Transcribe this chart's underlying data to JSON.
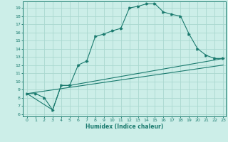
{
  "xlabel": "Humidex (Indice chaleur)",
  "bg_color": "#cceee8",
  "line_color": "#1a7a6e",
  "grid_color": "#aad8d0",
  "xlim": [
    -0.5,
    23.3
  ],
  "ylim": [
    5.7,
    19.8
  ],
  "xticks": [
    0,
    1,
    2,
    3,
    4,
    5,
    6,
    7,
    8,
    9,
    10,
    11,
    12,
    13,
    14,
    15,
    16,
    17,
    18,
    19,
    20,
    21,
    22,
    23
  ],
  "yticks": [
    6,
    7,
    8,
    9,
    10,
    11,
    12,
    13,
    14,
    15,
    16,
    17,
    18,
    19
  ],
  "line1_x": [
    0,
    1,
    2,
    3,
    4,
    5,
    6,
    7,
    8,
    9,
    10,
    11,
    12,
    13,
    14,
    15,
    16,
    17,
    18,
    19,
    20,
    21,
    22,
    23
  ],
  "line1_y": [
    8.5,
    8.5,
    8.0,
    6.5,
    9.5,
    9.5,
    12.0,
    12.5,
    15.5,
    15.8,
    16.2,
    16.5,
    19.0,
    19.2,
    19.5,
    19.5,
    18.5,
    18.2,
    18.0,
    15.8,
    14.0,
    13.2,
    12.8,
    12.8
  ],
  "line2_x": [
    0,
    3,
    4,
    5,
    23
  ],
  "line2_y": [
    8.5,
    6.5,
    9.5,
    9.5,
    12.8
  ],
  "line3_x": [
    0,
    23
  ],
  "line3_y": [
    8.5,
    12.0
  ]
}
